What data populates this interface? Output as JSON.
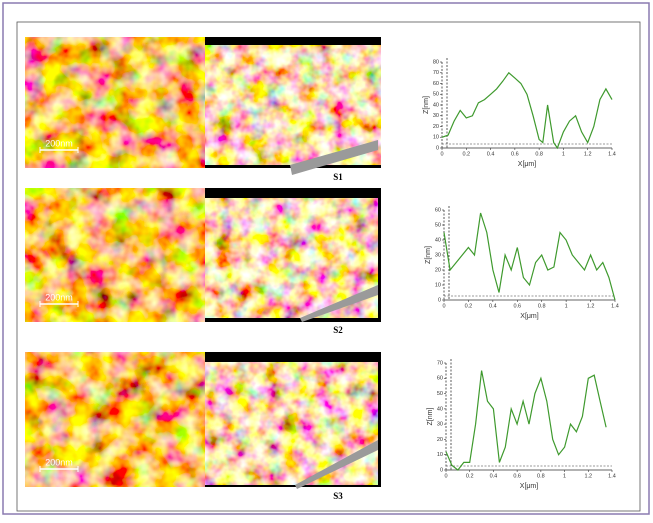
{
  "panels": [
    {
      "label": "S1",
      "scale_bar": "200nm"
    },
    {
      "label": "S2",
      "scale_bar": "200nm"
    },
    {
      "label": "S3",
      "scale_bar": "200nm"
    }
  ],
  "chart_data": [
    {
      "type": "line",
      "xlabel": "X[μm]",
      "ylabel": "Z[nm]",
      "x": [
        0,
        0.05,
        0.1,
        0.15,
        0.2,
        0.25,
        0.3,
        0.35,
        0.4,
        0.45,
        0.5,
        0.55,
        0.6,
        0.65,
        0.7,
        0.75,
        0.8,
        0.83,
        0.87,
        0.92,
        0.95,
        1.0,
        1.05,
        1.1,
        1.15,
        1.2,
        1.25,
        1.3,
        1.35,
        1.4
      ],
      "series": [
        {
          "color": "#3f9a2e",
          "values": [
            10,
            12,
            25,
            35,
            28,
            30,
            42,
            45,
            50,
            55,
            62,
            70,
            65,
            60,
            50,
            30,
            8,
            5,
            40,
            5,
            0,
            15,
            25,
            30,
            15,
            5,
            20,
            45,
            55,
            45
          ]
        }
      ],
      "xlim": [
        0,
        1.4
      ],
      "ylim": [
        0,
        80
      ],
      "xticks": [
        0,
        0.2,
        0.4,
        0.6,
        0.8,
        1,
        1.2,
        1.4
      ],
      "yticks": [
        0,
        10,
        20,
        30,
        40,
        50,
        60,
        70,
        80
      ]
    },
    {
      "type": "line",
      "xlabel": "X[μm]",
      "ylabel": "Z[nm]",
      "x": [
        0,
        0.05,
        0.1,
        0.15,
        0.2,
        0.25,
        0.3,
        0.35,
        0.4,
        0.45,
        0.5,
        0.55,
        0.6,
        0.65,
        0.7,
        0.75,
        0.8,
        0.85,
        0.9,
        0.95,
        1.0,
        1.05,
        1.1,
        1.15,
        1.2,
        1.25,
        1.3,
        1.35,
        1.4
      ],
      "series": [
        {
          "color": "#3f9a2e",
          "values": [
            45,
            20,
            25,
            30,
            35,
            30,
            58,
            45,
            20,
            5,
            30,
            20,
            35,
            15,
            10,
            25,
            30,
            20,
            22,
            45,
            40,
            30,
            25,
            20,
            30,
            20,
            25,
            15,
            0
          ]
        }
      ],
      "xlim": [
        0,
        1.4
      ],
      "ylim": [
        0,
        60
      ],
      "xticks": [
        0,
        0.2,
        0.4,
        0.6,
        0.8,
        1,
        1.2,
        1.4
      ],
      "yticks": [
        0,
        10,
        20,
        30,
        40,
        50,
        60
      ]
    },
    {
      "type": "line",
      "xlabel": "X[μm]",
      "ylabel": "Z[nm]",
      "x": [
        0,
        0.05,
        0.1,
        0.15,
        0.2,
        0.25,
        0.3,
        0.35,
        0.4,
        0.45,
        0.5,
        0.55,
        0.6,
        0.65,
        0.7,
        0.75,
        0.8,
        0.85,
        0.9,
        0.95,
        1.0,
        1.05,
        1.1,
        1.15,
        1.2,
        1.25,
        1.3,
        1.35
      ],
      "series": [
        {
          "color": "#3f9a2e",
          "values": [
            12,
            3,
            0,
            5,
            5,
            30,
            65,
            45,
            40,
            5,
            15,
            40,
            30,
            45,
            30,
            50,
            60,
            45,
            20,
            10,
            15,
            30,
            25,
            35,
            60,
            62,
            45,
            28
          ]
        }
      ],
      "xlim": [
        0,
        1.4
      ],
      "ylim": [
        0,
        70
      ],
      "xticks": [
        0,
        0.2,
        0.4,
        0.6,
        0.8,
        1,
        1.2,
        1.4
      ],
      "yticks": [
        0,
        10,
        20,
        30,
        40,
        50,
        60,
        70
      ]
    }
  ]
}
